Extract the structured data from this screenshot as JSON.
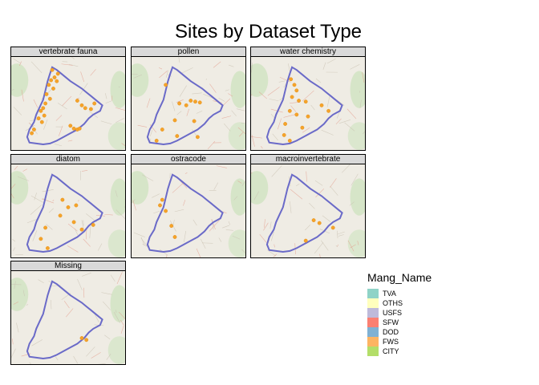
{
  "chart_data": {
    "type": "scatter",
    "title": "Sites by Dataset Type",
    "panels": [
      {
        "name": "vertebrate fauna",
        "points": [
          [
            0.36,
            0.14
          ],
          [
            0.41,
            0.18
          ],
          [
            0.38,
            0.22
          ],
          [
            0.35,
            0.25
          ],
          [
            0.4,
            0.26
          ],
          [
            0.33,
            0.3
          ],
          [
            0.37,
            0.34
          ],
          [
            0.31,
            0.4
          ],
          [
            0.34,
            0.45
          ],
          [
            0.3,
            0.5
          ],
          [
            0.28,
            0.55
          ],
          [
            0.26,
            0.58
          ],
          [
            0.29,
            0.63
          ],
          [
            0.24,
            0.66
          ],
          [
            0.27,
            0.7
          ],
          [
            0.58,
            0.47
          ],
          [
            0.62,
            0.52
          ],
          [
            0.65,
            0.55
          ],
          [
            0.7,
            0.56
          ],
          [
            0.73,
            0.5
          ],
          [
            0.52,
            0.74
          ],
          [
            0.55,
            0.77
          ],
          [
            0.58,
            0.78
          ],
          [
            0.6,
            0.77
          ],
          [
            0.2,
            0.78
          ],
          [
            0.18,
            0.82
          ]
        ]
      },
      {
        "name": "pollen",
        "points": [
          [
            0.3,
            0.3
          ],
          [
            0.42,
            0.5
          ],
          [
            0.48,
            0.52
          ],
          [
            0.52,
            0.47
          ],
          [
            0.56,
            0.48
          ],
          [
            0.6,
            0.49
          ],
          [
            0.38,
            0.68
          ],
          [
            0.55,
            0.69
          ],
          [
            0.27,
            0.78
          ],
          [
            0.4,
            0.85
          ],
          [
            0.58,
            0.86
          ],
          [
            0.22,
            0.9
          ]
        ]
      },
      {
        "name": "water chemistry",
        "points": [
          [
            0.35,
            0.24
          ],
          [
            0.38,
            0.3
          ],
          [
            0.4,
            0.36
          ],
          [
            0.36,
            0.43
          ],
          [
            0.42,
            0.47
          ],
          [
            0.48,
            0.48
          ],
          [
            0.62,
            0.52
          ],
          [
            0.68,
            0.58
          ],
          [
            0.34,
            0.58
          ],
          [
            0.4,
            0.62
          ],
          [
            0.5,
            0.64
          ],
          [
            0.3,
            0.72
          ],
          [
            0.45,
            0.76
          ],
          [
            0.29,
            0.84
          ],
          [
            0.34,
            0.9
          ]
        ]
      },
      {
        "name": "diatom",
        "points": [
          [
            0.45,
            0.38
          ],
          [
            0.5,
            0.46
          ],
          [
            0.57,
            0.44
          ],
          [
            0.43,
            0.55
          ],
          [
            0.3,
            0.68
          ],
          [
            0.55,
            0.62
          ],
          [
            0.72,
            0.65
          ],
          [
            0.62,
            0.7
          ],
          [
            0.26,
            0.8
          ],
          [
            0.32,
            0.9
          ]
        ]
      },
      {
        "name": "ostracode",
        "points": [
          [
            0.27,
            0.38
          ],
          [
            0.25,
            0.44
          ],
          [
            0.3,
            0.5
          ],
          [
            0.35,
            0.66
          ],
          [
            0.38,
            0.78
          ]
        ]
      },
      {
        "name": "macroinvertebrate",
        "points": [
          [
            0.55,
            0.6
          ],
          [
            0.6,
            0.63
          ],
          [
            0.72,
            0.68
          ],
          [
            0.48,
            0.82
          ]
        ]
      },
      {
        "name": "Missing",
        "points": [
          [
            0.62,
            0.72
          ],
          [
            0.66,
            0.74
          ]
        ]
      }
    ],
    "point_color": "#f5a32a",
    "boundary_color": "#6a6ac8",
    "legend": {
      "title": "Mang_Name",
      "position": "right",
      "entries": [
        {
          "label": "TVA",
          "color": "#8fd3c7"
        },
        {
          "label": "OTHS",
          "color": "#ffffbd"
        },
        {
          "label": "USFS",
          "color": "#bebada"
        },
        {
          "label": "SFW",
          "color": "#fb8072"
        },
        {
          "label": "DOD",
          "color": "#80b1d3"
        },
        {
          "label": "FWS",
          "color": "#fdb462"
        },
        {
          "label": "CITY",
          "color": "#b3de69"
        }
      ]
    }
  }
}
